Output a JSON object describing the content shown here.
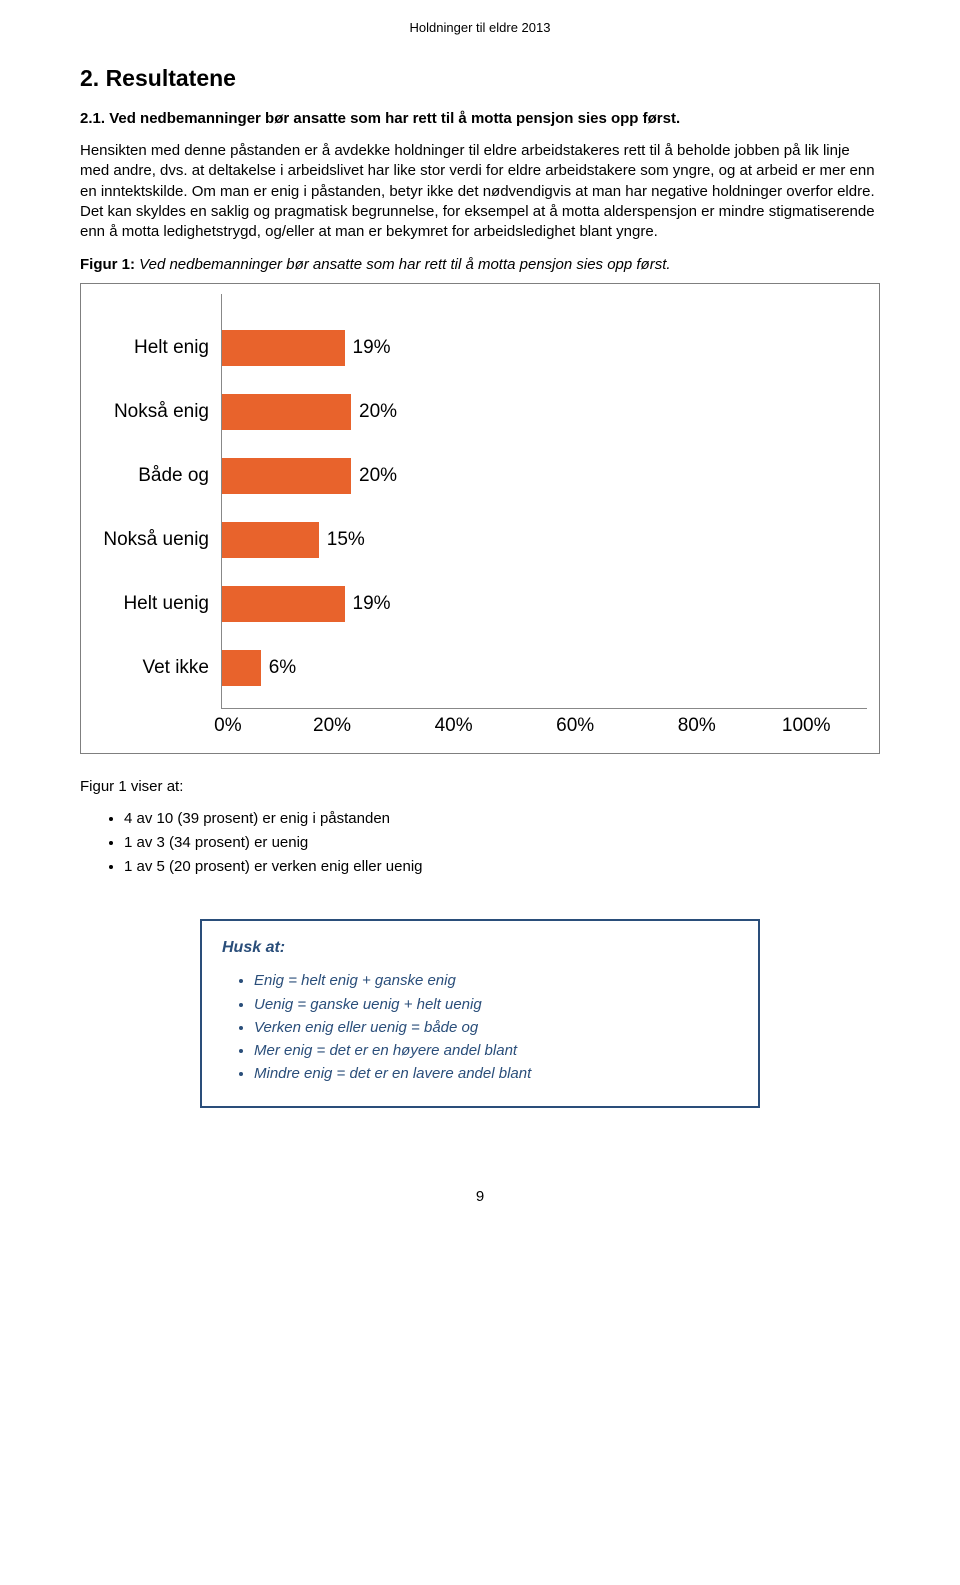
{
  "header": {
    "doc_title": "Holdninger til eldre 2013"
  },
  "section": {
    "h1": "2. Resultatene",
    "subtitle_prefix": "2.1. ",
    "subtitle_text": "Ved nedbemanninger bør ansatte som har rett til å motta pensjon sies opp først.",
    "body": "Hensikten med denne påstanden er å avdekke holdninger til eldre arbeidstakeres rett til å beholde jobben på lik linje med andre, dvs. at deltakelse i arbeidslivet har like stor verdi for eldre arbeidstakere som yngre, og at arbeid er mer enn en inntektskilde. Om man er enig i påstanden, betyr ikke det nødvendigvis at man har negative holdninger overfor eldre. Det kan skyldes en saklig og pragmatisk begrunnelse, for eksempel at å motta alderspensjon er mindre stigmatiserende enn å motta ledighetstrygd, og/eller at man er bekymret for arbeidsledighet blant yngre.",
    "figure_caption_bold": "Figur 1:",
    "figure_caption_italic": " Ved nedbemanninger bør ansatte som har rett til å motta pensjon sies opp først."
  },
  "chart": {
    "type": "bar-horizontal",
    "bar_color": "#e8632c",
    "axis_color": "#888888",
    "label_fontsize": 19,
    "xlim": [
      0,
      100
    ],
    "xticks": [
      "0%",
      "20%",
      "40%",
      "60%",
      "80%",
      "100%"
    ],
    "bars": [
      {
        "label": "Helt enig",
        "value": 19,
        "display": "19%"
      },
      {
        "label": "Nokså enig",
        "value": 20,
        "display": "20%"
      },
      {
        "label": "Både og",
        "value": 20,
        "display": "20%"
      },
      {
        "label": "Nokså uenig",
        "value": 15,
        "display": "15%"
      },
      {
        "label": "Helt uenig",
        "value": 19,
        "display": "19%"
      },
      {
        "label": "Vet ikke",
        "value": 6,
        "display": "6%"
      }
    ]
  },
  "post_figure": {
    "intro": "Figur 1 viser at:",
    "bullets": [
      "4 av 10 (39 prosent) er enig i påstanden",
      "1 av 3 (34 prosent) er uenig",
      "1 av 5 (20 prosent) er verken enig eller uenig"
    ]
  },
  "callout": {
    "title": "Husk at:",
    "items": [
      "Enig = helt enig + ganske enig",
      "Uenig = ganske uenig + helt uenig",
      "Verken enig eller uenig = både og",
      "Mer enig = det er en høyere andel blant",
      "Mindre enig = det er en lavere andel blant"
    ],
    "border_color": "#2a4e7a",
    "text_color": "#2a4e7a"
  },
  "footer": {
    "page_num": "9"
  }
}
